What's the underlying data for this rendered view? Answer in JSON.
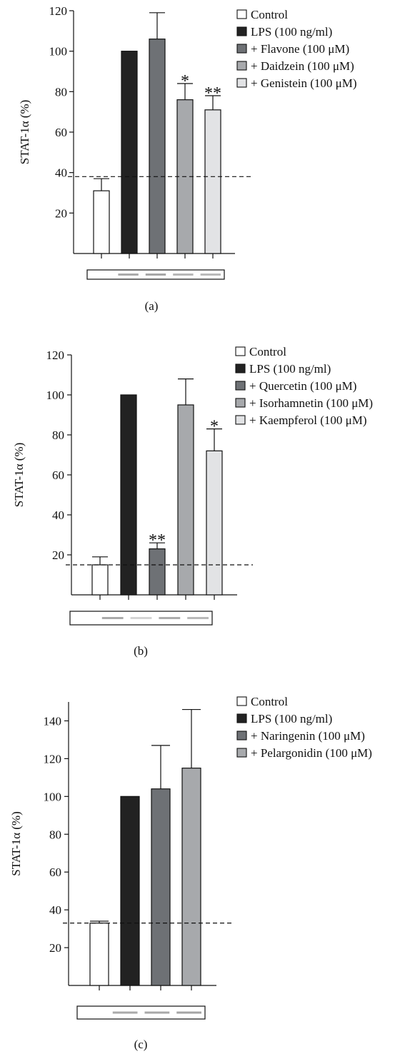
{
  "chart_data": [
    {
      "type": "bar",
      "panel_label": "(a)",
      "ylabel": "STAT-1α (%)",
      "xlabel": "",
      "ylim": [
        0,
        120
      ],
      "yticks": [
        20,
        40,
        60,
        80,
        100,
        120
      ],
      "categories": [
        "Control",
        "LPS (100 ng/ml)",
        "+ Flavone (100 μM)",
        "+ Daidzein (100 μM)",
        "+ Genistein (100 μM)"
      ],
      "values": [
        31,
        100,
        106,
        76,
        71
      ],
      "errors": [
        6,
        0,
        13,
        8,
        7
      ],
      "significance": [
        "",
        "",
        "",
        "*",
        "**"
      ],
      "colors": [
        "#ffffff",
        "#222222",
        "#6e7175",
        "#a7a9ac",
        "#e2e3e5"
      ],
      "reference_line": 38,
      "legend_position": "right"
    },
    {
      "type": "bar",
      "panel_label": "(b)",
      "ylabel": "STAT-1α (%)",
      "xlabel": "",
      "ylim": [
        0,
        120
      ],
      "yticks": [
        20,
        40,
        60,
        80,
        100,
        120
      ],
      "categories": [
        "Control",
        "LPS (100 ng/ml)",
        "+ Quercetin (100 μM)",
        "+ Isorhamnetin (100 μM)",
        "+ Kaempferol (100 μM)"
      ],
      "values": [
        15,
        100,
        23,
        95,
        72
      ],
      "errors": [
        4,
        0,
        3,
        13,
        11
      ],
      "significance": [
        "",
        "",
        "**",
        "",
        "*"
      ],
      "colors": [
        "#ffffff",
        "#222222",
        "#6e7175",
        "#a7a9ac",
        "#e2e3e5"
      ],
      "reference_line": 15,
      "legend_position": "right"
    },
    {
      "type": "bar",
      "panel_label": "(c)",
      "ylabel": "STAT-1α (%)",
      "xlabel": "",
      "ylim": [
        0,
        150
      ],
      "yticks": [
        20,
        40,
        60,
        80,
        100,
        120,
        140
      ],
      "categories": [
        "Control",
        "LPS (100 ng/ml)",
        "+ Naringenin (100 μM)",
        "+ Pelargonidin (100 μM)"
      ],
      "values": [
        33,
        100,
        104,
        115
      ],
      "errors": [
        1,
        0,
        23,
        31
      ],
      "significance": [
        "",
        "",
        "",
        ""
      ],
      "colors": [
        "#ffffff",
        "#222222",
        "#6e7175",
        "#a7a9ac"
      ],
      "reference_line": 33,
      "legend_position": "right"
    }
  ]
}
